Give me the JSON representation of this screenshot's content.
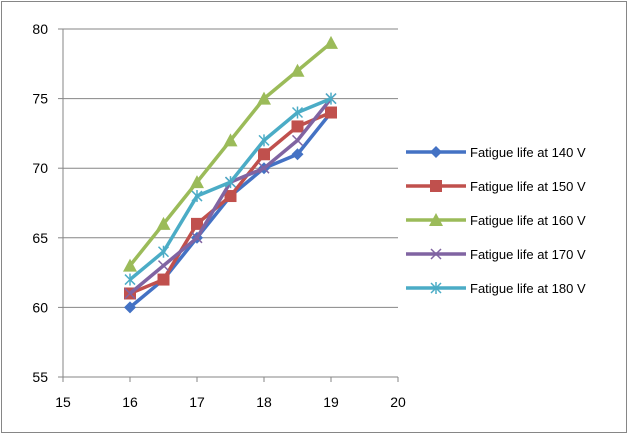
{
  "chart_data": {
    "type": "line",
    "title": "",
    "xlabel": "",
    "ylabel": "",
    "x": [
      16,
      16.5,
      17,
      17.5,
      18,
      18.5,
      19
    ],
    "xlim": [
      15,
      20
    ],
    "ylim": [
      55,
      80
    ],
    "x_ticks": [
      15,
      16,
      17,
      18,
      19,
      20
    ],
    "y_ticks": [
      55,
      60,
      65,
      70,
      75,
      80
    ],
    "grid": "horizontal",
    "legend_position": "right",
    "series": [
      {
        "name": "Fatigue life at 140 V",
        "color": "#4472C4",
        "marker": "diamond",
        "values": [
          60,
          62,
          65,
          68,
          70,
          71,
          74
        ]
      },
      {
        "name": "Fatigue life at 150 V",
        "color": "#C0504D",
        "marker": "square",
        "values": [
          61,
          62,
          66,
          68,
          71,
          73,
          74
        ]
      },
      {
        "name": "Fatigue life at 160 V",
        "color": "#9BBB59",
        "marker": "triangle",
        "values": [
          63,
          66,
          69,
          72,
          75,
          77,
          79
        ]
      },
      {
        "name": "Fatigue life at 170 V",
        "color": "#8064A2",
        "marker": "x",
        "values": [
          61,
          63,
          65,
          69,
          70,
          72,
          75
        ]
      },
      {
        "name": "Fatigue life at 180 V",
        "color": "#4BACC6",
        "marker": "star",
        "values": [
          62,
          64,
          68,
          69,
          72,
          74,
          75
        ]
      }
    ]
  }
}
